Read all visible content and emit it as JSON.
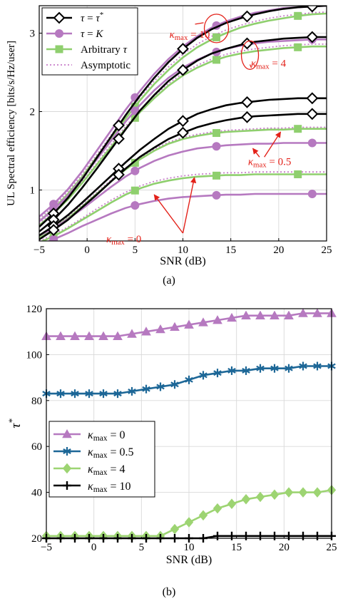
{
  "colors": {
    "tau_star": "#000000",
    "tau_K": "#b679c0",
    "arbitrary": "#8fcf6e",
    "asymptotic": "#c77cc9",
    "annotation": "#e32119",
    "kappa0": "#b679c0",
    "kappa05": "#1d6797",
    "kappa4": "#9dd472",
    "kappa10": "#000000"
  },
  "chart_data": [
    {
      "panel_label": "(a)",
      "type": "line",
      "xlabel": "SNR (dB)",
      "ylabel": "UL Spectral efficiency [bits/s/Hz/user]",
      "xlim": [
        -5,
        25
      ],
      "ylim": [
        0.35,
        3.35
      ],
      "x_ticks": [
        -5,
        0,
        5,
        10,
        15,
        20,
        25
      ],
      "y_ticks": [
        1,
        2,
        3
      ],
      "grid": true,
      "legend_position": "top-left",
      "legend": [
        {
          "label": "τ = τ*",
          "style": "tau_star"
        },
        {
          "label": "τ = K",
          "style": "tau_K"
        },
        {
          "label": "Arbitrary τ",
          "style": "arbitrary"
        },
        {
          "label": "Asymptotic",
          "style": "asymptotic"
        }
      ],
      "annotations": [
        {
          "text": "κmax = 10",
          "anchor": [
            15.2,
            3.07
          ],
          "ellipse": [
            13.5,
            3.06
          ]
        },
        {
          "text": "κmax = 4",
          "anchor": [
            20.0,
            2.63
          ],
          "ellipse": [
            17.0,
            2.72
          ]
        },
        {
          "text": "κmax = 0.5",
          "anchor": [
            21.5,
            1.35
          ],
          "arrows": [
            [
              20.0,
              1.75
            ],
            [
              19.5,
              1.55
            ]
          ]
        },
        {
          "text": "κmax = 0",
          "anchor": [
            9.0,
            0.33
          ],
          "arrows": [
            [
              7.0,
              0.95
            ],
            [
              12.5,
              1.2
            ]
          ]
        }
      ],
      "x": [
        -5,
        -3.5,
        -2,
        -0.5,
        1,
        2.5,
        4,
        5.5,
        7,
        8.5,
        10,
        11.5,
        13,
        14.5,
        16,
        17.5,
        19,
        20.5,
        22,
        23.5,
        25
      ],
      "series": [
        {
          "group": "κmax = 10",
          "style": "tau_star",
          "markers_at": [
            -3.5,
            3.3,
            10,
            16.7,
            23.5
          ],
          "values": [
            0.53,
            0.7,
            0.9,
            1.14,
            1.41,
            1.68,
            1.95,
            2.2,
            2.43,
            2.63,
            2.8,
            2.94,
            3.05,
            3.13,
            3.19,
            3.24,
            3.28,
            3.31,
            3.33,
            3.34,
            3.35
          ]
        },
        {
          "group": "κmax = 10",
          "style": "tau_K",
          "markers_at": [
            -3.5,
            5,
            13.5,
            23.5
          ],
          "values": [
            0.66,
            0.82,
            1.01,
            1.24,
            1.5,
            1.76,
            2.02,
            2.26,
            2.48,
            2.67,
            2.83,
            2.96,
            3.07,
            3.15,
            3.21,
            3.26,
            3.29,
            3.32,
            3.33,
            3.34,
            3.35
          ]
        },
        {
          "group": "κmax = 10",
          "style": "arbitrary",
          "markers_at": [
            -3.5,
            5,
            13.5,
            22
          ],
          "values": [
            0.6,
            0.76,
            0.95,
            1.17,
            1.42,
            1.67,
            1.91,
            2.14,
            2.35,
            2.53,
            2.69,
            2.82,
            2.92,
            3.0,
            3.07,
            3.12,
            3.16,
            3.19,
            3.22,
            3.24,
            3.25
          ]
        },
        {
          "group": "κmax = 10",
          "style": "asymptotic",
          "markers_at": [],
          "values": [
            0.63,
            0.79,
            0.98,
            1.2,
            1.45,
            1.7,
            1.95,
            2.18,
            2.39,
            2.57,
            2.73,
            2.86,
            2.96,
            3.04,
            3.1,
            3.15,
            3.19,
            3.22,
            3.24,
            3.26,
            3.27
          ]
        },
        {
          "group": "κmax = 4",
          "style": "tau_star",
          "markers_at": [
            -3.5,
            3.3,
            10,
            16.7,
            23.5
          ],
          "values": [
            0.47,
            0.62,
            0.81,
            1.03,
            1.27,
            1.52,
            1.77,
            2.01,
            2.21,
            2.39,
            2.53,
            2.65,
            2.74,
            2.8,
            2.85,
            2.89,
            2.91,
            2.93,
            2.94,
            2.95,
            2.95
          ]
        },
        {
          "group": "κmax = 4",
          "style": "tau_K",
          "markers_at": [
            -3.5,
            5,
            13.5,
            23.5
          ],
          "values": [
            0.6,
            0.75,
            0.93,
            1.15,
            1.39,
            1.63,
            1.87,
            2.08,
            2.27,
            2.43,
            2.56,
            2.66,
            2.74,
            2.8,
            2.84,
            2.87,
            2.89,
            2.9,
            2.91,
            2.92,
            2.92
          ]
        },
        {
          "group": "κmax = 4",
          "style": "arbitrary",
          "markers_at": [
            -3.5,
            5,
            13.5,
            22
          ],
          "values": [
            0.55,
            0.7,
            0.88,
            1.09,
            1.32,
            1.55,
            1.78,
            1.99,
            2.17,
            2.33,
            2.46,
            2.56,
            2.64,
            2.7,
            2.74,
            2.77,
            2.79,
            2.81,
            2.82,
            2.83,
            2.83
          ]
        },
        {
          "group": "κmax = 4",
          "style": "asymptotic",
          "markers_at": [],
          "values": [
            0.57,
            0.72,
            0.9,
            1.11,
            1.34,
            1.58,
            1.81,
            2.02,
            2.2,
            2.36,
            2.49,
            2.59,
            2.67,
            2.73,
            2.77,
            2.8,
            2.82,
            2.84,
            2.85,
            2.86,
            2.86
          ]
        },
        {
          "group": "κmax = 0.5",
          "style": "tau_star",
          "markers_at": [
            -3.5,
            3.3,
            10,
            16.7,
            23.5
          ],
          "values": [
            0.42,
            0.54,
            0.68,
            0.84,
            1.01,
            1.18,
            1.35,
            1.51,
            1.65,
            1.78,
            1.88,
            1.97,
            2.03,
            2.08,
            2.11,
            2.13,
            2.15,
            2.16,
            2.17,
            2.17,
            2.17
          ]
        },
        {
          "group": "κmax = 0.5",
          "style": "tau_star",
          "markers_at": [
            -3.5,
            3.3,
            10,
            16.7,
            23.5
          ],
          "values": [
            0.37,
            0.49,
            0.62,
            0.78,
            0.94,
            1.11,
            1.27,
            1.42,
            1.54,
            1.65,
            1.73,
            1.8,
            1.85,
            1.89,
            1.92,
            1.94,
            1.95,
            1.96,
            1.97,
            1.97,
            1.97
          ]
        },
        {
          "group": "κmax = 0.5",
          "style": "tau_K",
          "markers_at": [
            -3.5,
            5,
            13.5,
            23.5
          ],
          "values": [
            0.42,
            0.51,
            0.63,
            0.76,
            0.9,
            1.04,
            1.17,
            1.28,
            1.37,
            1.44,
            1.49,
            1.53,
            1.55,
            1.57,
            1.58,
            1.59,
            1.59,
            1.6,
            1.6,
            1.6,
            1.6
          ]
        },
        {
          "group": "κmax = 0.5",
          "style": "arbitrary",
          "markers_at": [
            -3.5,
            5,
            13.5,
            22
          ],
          "values": [
            0.4,
            0.51,
            0.64,
            0.79,
            0.95,
            1.11,
            1.26,
            1.39,
            1.5,
            1.59,
            1.65,
            1.69,
            1.72,
            1.74,
            1.75,
            1.76,
            1.77,
            1.77,
            1.78,
            1.78,
            1.78
          ]
        },
        {
          "group": "κmax = 0.5",
          "style": "asymptotic",
          "markers_at": [],
          "values": [
            0.41,
            0.53,
            0.66,
            0.81,
            0.97,
            1.13,
            1.28,
            1.41,
            1.52,
            1.61,
            1.67,
            1.71,
            1.74,
            1.76,
            1.77,
            1.78,
            1.79,
            1.79,
            1.8,
            1.8,
            1.8
          ]
        },
        {
          "group": "κmax = 0",
          "style": "tau_K",
          "markers_at": [
            -3.5,
            5,
            13.5,
            23.5
          ],
          "values": [
            0.3,
            0.37,
            0.45,
            0.54,
            0.62,
            0.7,
            0.77,
            0.82,
            0.86,
            0.89,
            0.91,
            0.92,
            0.93,
            0.94,
            0.94,
            0.95,
            0.95,
            0.95,
            0.95,
            0.95,
            0.95
          ]
        },
        {
          "group": "κmax = 0",
          "style": "arbitrary",
          "markers_at": [
            -3.5,
            5,
            13.5,
            22
          ],
          "values": [
            0.33,
            0.41,
            0.51,
            0.62,
            0.73,
            0.84,
            0.94,
            1.02,
            1.08,
            1.12,
            1.15,
            1.17,
            1.18,
            1.19,
            1.19,
            1.2,
            1.2,
            1.2,
            1.2,
            1.2,
            1.2
          ]
        },
        {
          "group": "κmax = 0",
          "style": "asymptotic",
          "markers_at": [],
          "values": [
            0.35,
            0.43,
            0.53,
            0.64,
            0.76,
            0.87,
            0.97,
            1.05,
            1.11,
            1.15,
            1.18,
            1.2,
            1.21,
            1.22,
            1.22,
            1.23,
            1.23,
            1.23,
            1.23,
            1.23,
            1.23
          ]
        }
      ]
    },
    {
      "panel_label": "(b)",
      "type": "line",
      "xlabel": "SNR (dB)",
      "ylabel": "τ*",
      "xlim": [
        -5,
        25
      ],
      "ylim": [
        20,
        120
      ],
      "x_ticks": [
        -5,
        0,
        5,
        10,
        15,
        20,
        25
      ],
      "y_ticks": [
        20,
        40,
        60,
        80,
        100,
        120
      ],
      "grid": true,
      "legend_position": "bottom-left",
      "x": [
        -5,
        -3.5,
        -2,
        -0.5,
        1,
        2.5,
        4,
        5.5,
        7,
        8.5,
        10,
        11.5,
        13,
        14.5,
        16,
        17.5,
        19,
        20.5,
        22,
        23.5,
        25
      ],
      "series": [
        {
          "name": "κmax = 0",
          "style": "kappa0",
          "marker": "triangle",
          "values": [
            108,
            108,
            108,
            108,
            108,
            108,
            109,
            110,
            111,
            112,
            113,
            114,
            115,
            116,
            117,
            117,
            117,
            117,
            118,
            118,
            118
          ]
        },
        {
          "name": "κmax = 0.5",
          "style": "kappa05",
          "marker": "star",
          "values": [
            83,
            83,
            83,
            83,
            83,
            83,
            84,
            85,
            86,
            87,
            89,
            91,
            92,
            93,
            93,
            94,
            94,
            94,
            95,
            95,
            95
          ]
        },
        {
          "name": "κmax = 4",
          "style": "kappa4",
          "marker": "diamond",
          "values": [
            21,
            21,
            21,
            21,
            21,
            21,
            21,
            21,
            21,
            24,
            27,
            30,
            33,
            35,
            37,
            38,
            39,
            40,
            40,
            40,
            41
          ]
        },
        {
          "name": "κmax = 10",
          "style": "kappa10",
          "marker": "plus",
          "values": [
            20,
            20,
            20,
            20,
            20,
            20,
            20,
            20,
            20,
            20,
            20,
            20,
            21,
            21,
            21,
            21,
            21,
            21,
            21,
            21,
            21
          ]
        }
      ]
    }
  ]
}
